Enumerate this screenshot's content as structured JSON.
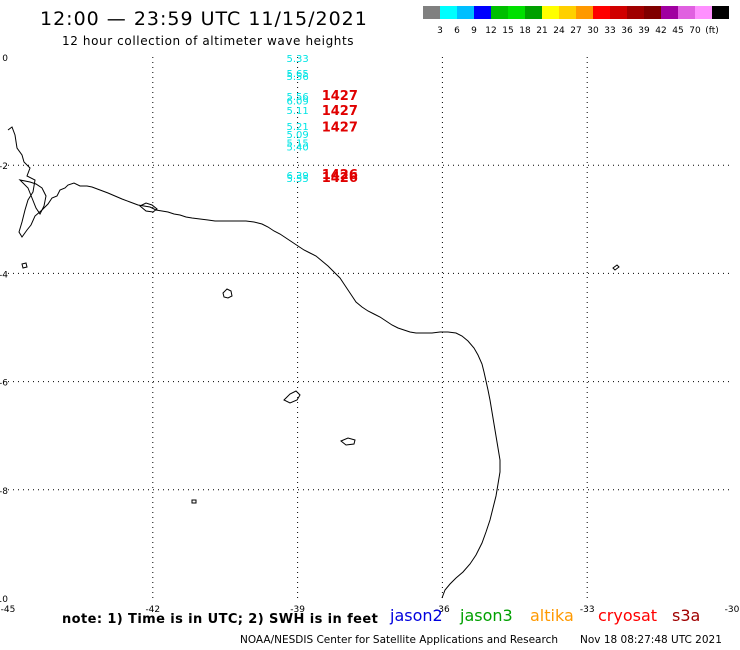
{
  "title": "12:00 — 23:59 UTC 11/15/2021",
  "subtitle": "12 hour collection of altimeter wave heights",
  "scale": {
    "colors": [
      "#808080",
      "#00ffff",
      "#00bfff",
      "#0000ff",
      "#00bf00",
      "#00e000",
      "#00a000",
      "#ffff00",
      "#ffd000",
      "#ff9900",
      "#ff0000",
      "#d00000",
      "#a00000",
      "#800000",
      "#a000a0",
      "#e060e0",
      "#ff90ff",
      "#000000"
    ],
    "labels": [
      "3",
      "6",
      "9",
      "12",
      "15",
      "18",
      "21",
      "24",
      "27",
      "30",
      "33",
      "36",
      "39",
      "42",
      "45",
      "70",
      "(ft)"
    ]
  },
  "axes": {
    "lon_ticks": [
      -45,
      -42,
      -39,
      -36,
      -33,
      -30
    ],
    "lon_labels": [
      "-45",
      "-42",
      "-39",
      "-36",
      "-33",
      "-30"
    ],
    "lat_ticks": [
      0,
      -2,
      -4,
      -6,
      -8,
      -10
    ],
    "lat_labels": [
      "0",
      "-2",
      "-4",
      "-6",
      "-8",
      "-10"
    ],
    "lon_range": [
      -45,
      -30
    ],
    "lat_range": [
      -10,
      0
    ]
  },
  "observations": [
    {
      "lon": -39.0,
      "lat": -0.02,
      "value": "5.33",
      "color": "#00e5e5"
    },
    {
      "lon": -39.0,
      "lat": -0.3,
      "value": "5.65",
      "color": "#00e5e5"
    },
    {
      "lon": -39.0,
      "lat": -0.35,
      "value": "5.56",
      "color": "#00e5e5"
    },
    {
      "lon": -39.0,
      "lat": -0.72,
      "value": "5.56",
      "color": "#00e5e5"
    },
    {
      "lon": -39.0,
      "lat": -0.8,
      "value": "6.09",
      "color": "#00e5e5"
    },
    {
      "lon": -39.0,
      "lat": -0.98,
      "value": "5.11",
      "color": "#00e5e5"
    },
    {
      "lon": -39.0,
      "lat": -1.28,
      "value": "5.21",
      "color": "#00e5e5"
    },
    {
      "lon": -39.0,
      "lat": -1.42,
      "value": "5.09",
      "color": "#00e5e5"
    },
    {
      "lon": -39.0,
      "lat": -1.58,
      "value": "5.15",
      "color": "#00e5e5"
    },
    {
      "lon": -39.0,
      "lat": -1.65,
      "value": "5.40",
      "color": "#00e5e5"
    },
    {
      "lon": -39.0,
      "lat": -2.18,
      "value": "6.39",
      "color": "#00e5e5"
    },
    {
      "lon": -39.0,
      "lat": -2.24,
      "value": "5.55",
      "color": "#00e5e5"
    }
  ],
  "time_labels": [
    {
      "lon": -38.5,
      "lat": -0.72,
      "value": "1427"
    },
    {
      "lon": -38.5,
      "lat": -1.0,
      "value": "1427"
    },
    {
      "lon": -38.5,
      "lat": -1.3,
      "value": "1427"
    },
    {
      "lon": -38.5,
      "lat": -2.18,
      "value": "1426"
    },
    {
      "lon": -38.5,
      "lat": -2.24,
      "value": "1426"
    }
  ],
  "note": "note: 1) Time is in UTC; 2) SWH is in feet",
  "satellites": [
    {
      "name": "jason2",
      "color": "#0000dd"
    },
    {
      "name": "jason3",
      "color": "#00a000"
    },
    {
      "name": "altika",
      "color": "#ff9900"
    },
    {
      "name": "cryosat",
      "color": "#ff0000"
    },
    {
      "name": "s3a",
      "color": "#a00000"
    }
  ],
  "credit": "NOAA/NESDIS Center for Satellite Applications and Research",
  "generated": "Nov 18 08:27:48 UTC 2021"
}
